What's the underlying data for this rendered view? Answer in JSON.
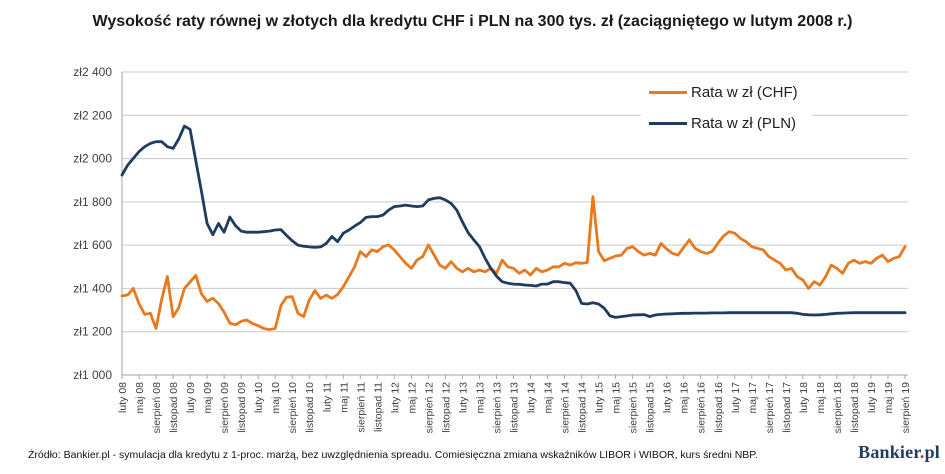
{
  "chart_data": {
    "type": "line",
    "title": "Wysokość raty równej w złotych dla kredytu CHF i PLN na 300 tys. zł (zaciągniętego w lutym 2008 r.)",
    "xlabel": "",
    "ylabel": "",
    "ylim": [
      1000,
      2400
    ],
    "ytick_step": 200,
    "ytick_labels": [
      "zł1 000",
      "zł1 200",
      "zł1 400",
      "zł1 600",
      "zł1 800",
      "zł2 000",
      "zł2 200",
      "zł2 400"
    ],
    "grid": "horizontal",
    "legend_position": "top-right-inside",
    "x_tick_labels": [
      "luty 08",
      "maj 08",
      "sierpień 08",
      "listopad 08",
      "luty 09",
      "maj 09",
      "sierpień 09",
      "listopad 09",
      "luty 10",
      "maj 10",
      "sierpień 10",
      "listopad 10",
      "luty 11",
      "maj 11",
      "sierpień 11",
      "listopad 11",
      "luty 12",
      "maj 12",
      "sierpień 12",
      "listopad 12",
      "luty 13",
      "maj 13",
      "sierpień 13",
      "listopad 13",
      "luty 14",
      "maj 14",
      "sierpień 14",
      "listopad 14",
      "luty 15",
      "maj 15",
      "sierpień 15",
      "listopad 15",
      "luty 16",
      "maj 16",
      "sierpień 16",
      "listopad 16",
      "luty 17",
      "maj 17",
      "sierpień 17",
      "listopad 17",
      "luty 18",
      "maj 18",
      "sierpień 18",
      "listopad 18",
      "luty 19",
      "maj 19",
      "sierpień 19"
    ],
    "months_per_tick": 3,
    "series": [
      {
        "key": "chf",
        "name": "Rata w zł (CHF)",
        "color": "#E8791F",
        "values": [
          1365,
          1370,
          1400,
          1330,
          1280,
          1285,
          1215,
          1350,
          1455,
          1270,
          1310,
          1400,
          1430,
          1460,
          1375,
          1340,
          1355,
          1330,
          1290,
          1240,
          1232,
          1248,
          1254,
          1238,
          1228,
          1215,
          1210,
          1215,
          1320,
          1360,
          1362,
          1285,
          1270,
          1346,
          1390,
          1354,
          1369,
          1354,
          1372,
          1408,
          1454,
          1500,
          1570,
          1547,
          1578,
          1570,
          1593,
          1601,
          1578,
          1547,
          1516,
          1493,
          1531,
          1547,
          1601,
          1554,
          1508,
          1493,
          1524,
          1493,
          1477,
          1493,
          1477,
          1485,
          1477,
          1493,
          1470,
          1531,
          1500,
          1493,
          1470,
          1485,
          1462,
          1493,
          1477,
          1485,
          1500,
          1500,
          1516,
          1508,
          1519,
          1516,
          1520,
          1824,
          1570,
          1528,
          1539,
          1550,
          1554,
          1585,
          1593,
          1570,
          1554,
          1562,
          1554,
          1608,
          1582,
          1562,
          1554,
          1590,
          1624,
          1585,
          1570,
          1562,
          1570,
          1608,
          1642,
          1662,
          1655,
          1631,
          1616,
          1593,
          1585,
          1578,
          1547,
          1531,
          1516,
          1485,
          1493,
          1454,
          1439,
          1400,
          1431,
          1416,
          1454,
          1508,
          1493,
          1470,
          1516,
          1531,
          1516,
          1524,
          1516,
          1539,
          1554,
          1524,
          1539,
          1547,
          1593
        ]
      },
      {
        "key": "pln",
        "name": "Rata w zł (PLN)",
        "color": "#1F3B5D",
        "values": [
          1924,
          1970,
          2001,
          2032,
          2055,
          2070,
          2078,
          2078,
          2055,
          2047,
          2090,
          2150,
          2135,
          1990,
          1850,
          1700,
          1648,
          1700,
          1660,
          1730,
          1690,
          1665,
          1660,
          1660,
          1660,
          1662,
          1665,
          1670,
          1672,
          1645,
          1620,
          1600,
          1595,
          1592,
          1590,
          1592,
          1608,
          1640,
          1616,
          1655,
          1670,
          1688,
          1704,
          1728,
          1732,
          1732,
          1739,
          1762,
          1778,
          1781,
          1785,
          1781,
          1778,
          1781,
          1809,
          1816,
          1819,
          1809,
          1793,
          1762,
          1708,
          1658,
          1624,
          1593,
          1539,
          1493,
          1457,
          1431,
          1424,
          1420,
          1419,
          1416,
          1414,
          1411,
          1420,
          1420,
          1431,
          1431,
          1427,
          1424,
          1390,
          1331,
          1328,
          1334,
          1328,
          1308,
          1273,
          1266,
          1270,
          1273,
          1277,
          1278,
          1279,
          1270,
          1277,
          1280,
          1282,
          1283,
          1284,
          1285,
          1285,
          1286,
          1286,
          1286,
          1287,
          1287,
          1287,
          1288,
          1288,
          1288,
          1288,
          1288,
          1288,
          1288,
          1288,
          1288,
          1288,
          1288,
          1288,
          1285,
          1280,
          1278,
          1277,
          1278,
          1280,
          1283,
          1285,
          1286,
          1287,
          1288,
          1288,
          1288,
          1288,
          1288,
          1288,
          1288,
          1288,
          1288,
          1288
        ]
      }
    ]
  },
  "footer": {
    "source": "Źródło: Bankier.pl - symulacja dla kredytu z 1-proc. marżą, bez uwzględnienia spreadu. Comiesięczna zmiana wskaźników LIBOR i WIBOR, kurs średni NBP.",
    "logo": {
      "text_before_dot": "Bankier",
      "dot": ".",
      "text_after_dot": "pl",
      "text_color": "#1F3B5D",
      "dot_color": "#D5232A"
    }
  }
}
